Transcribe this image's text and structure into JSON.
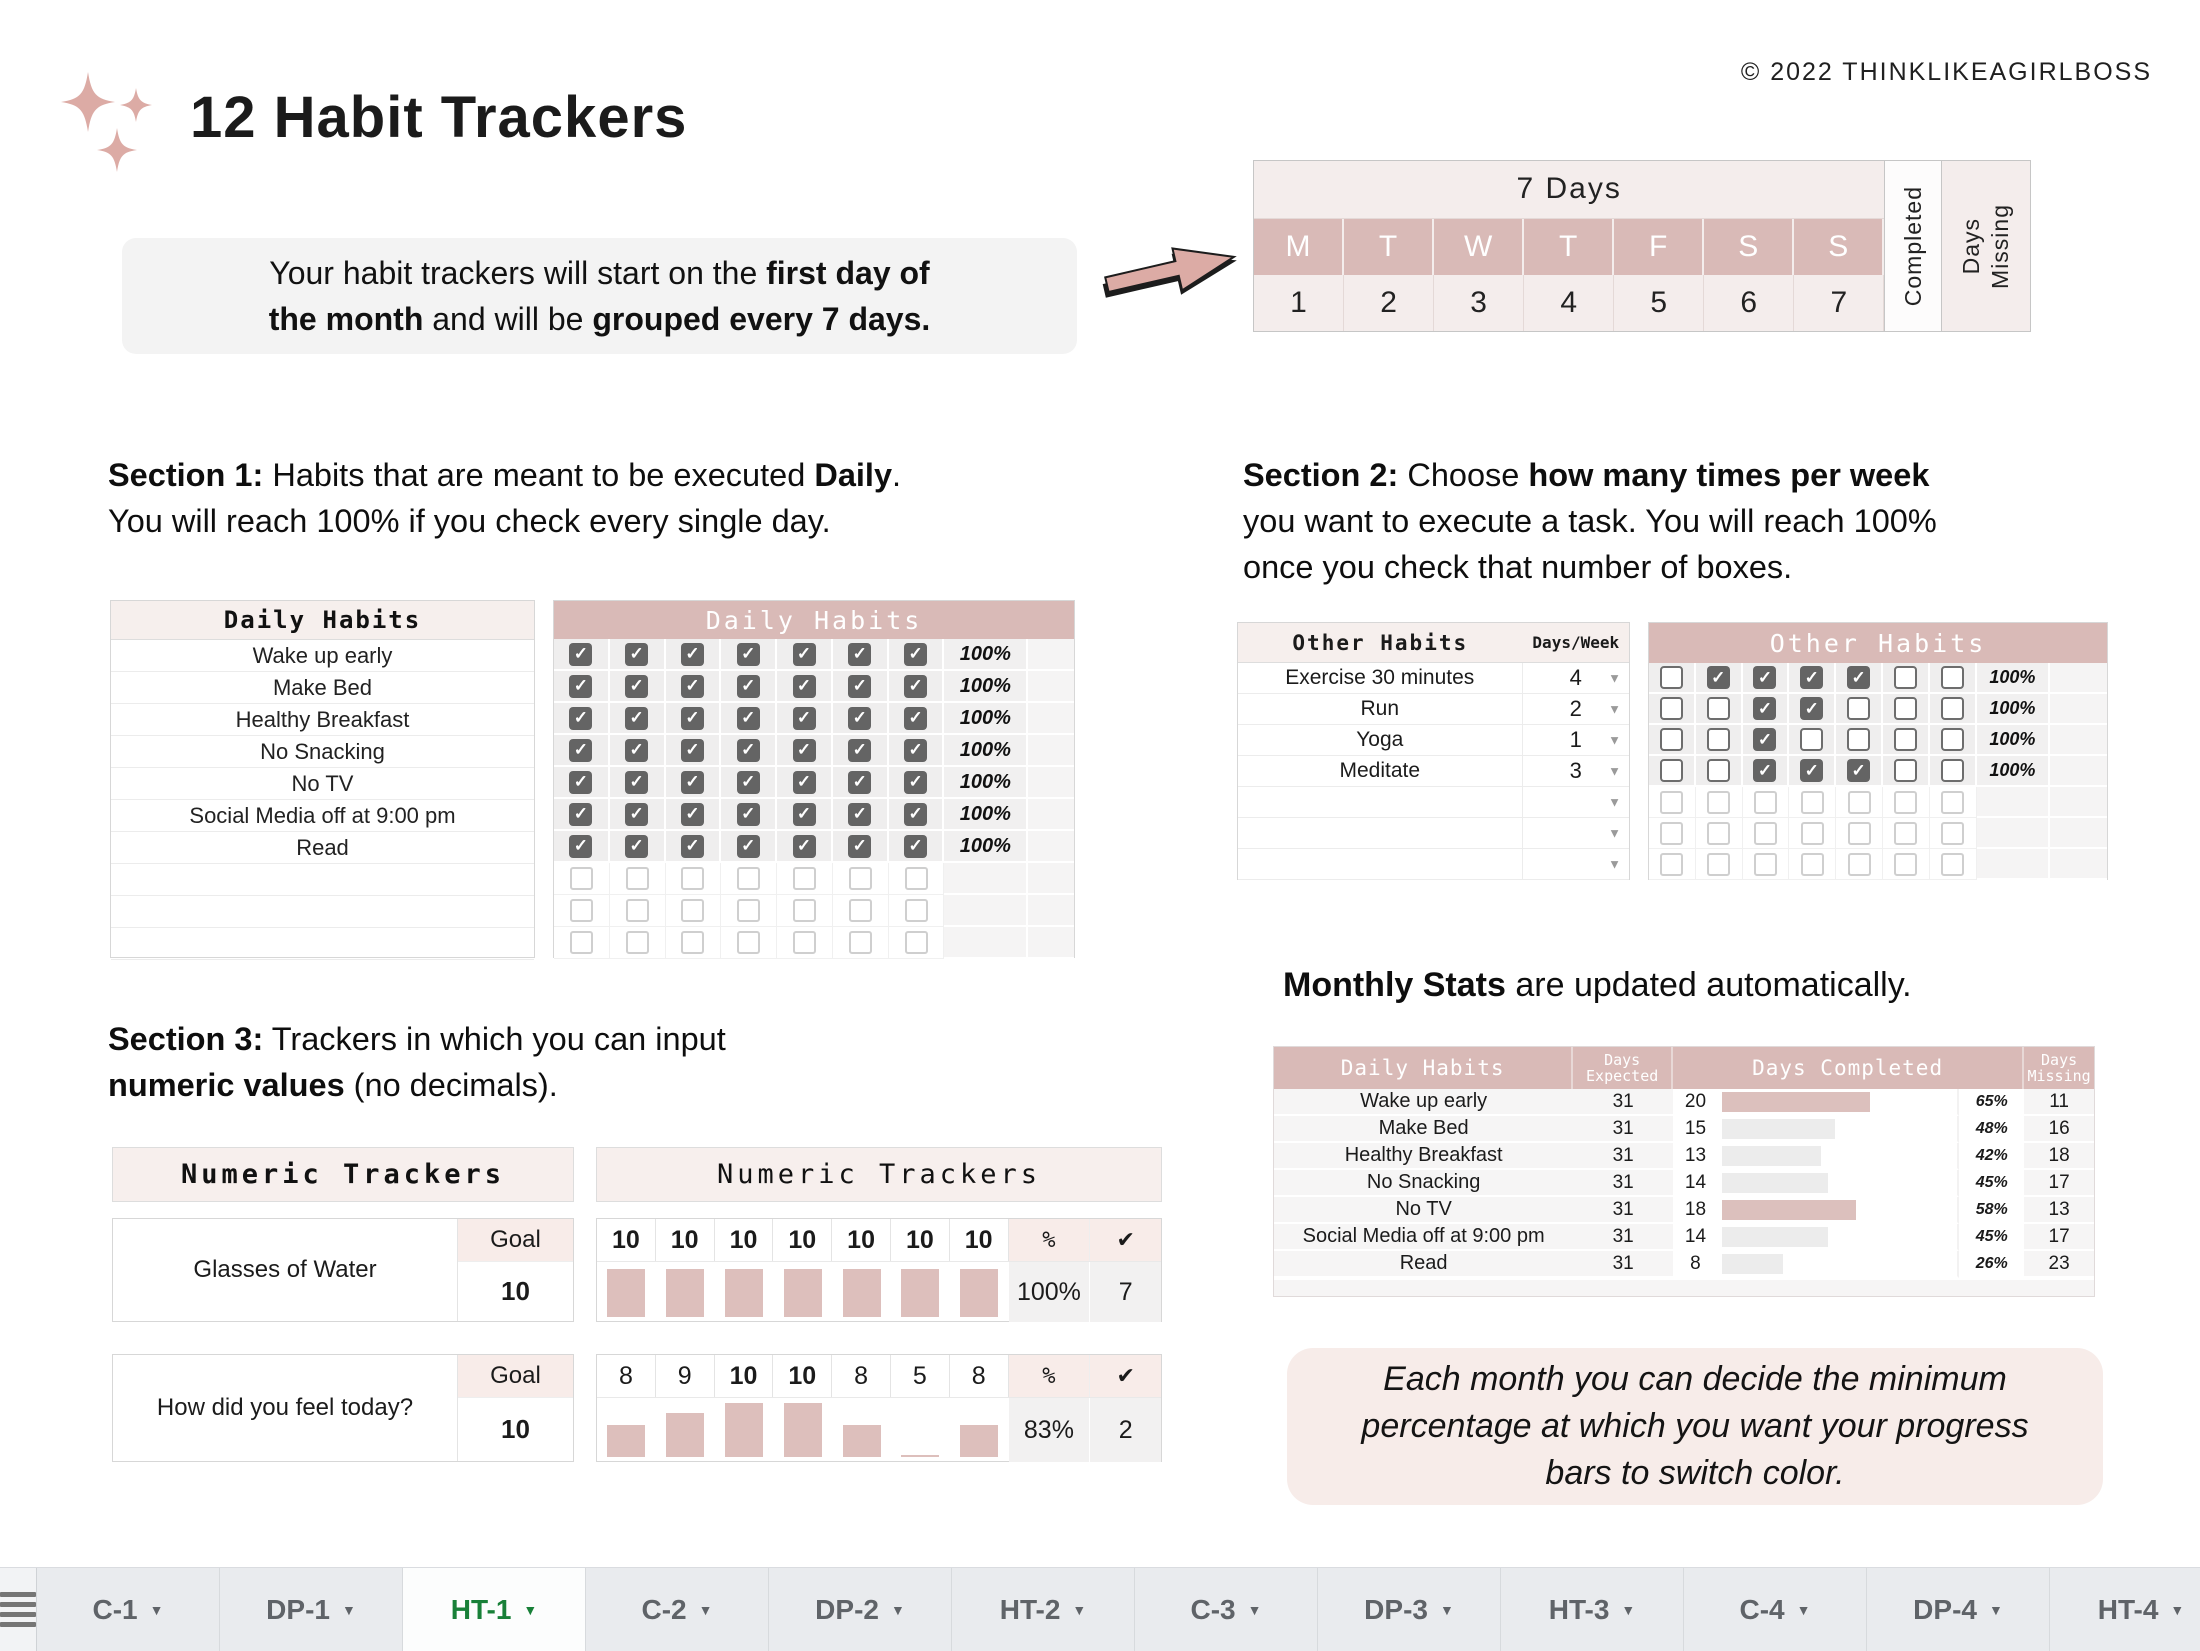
{
  "header": {
    "title": "12 Habit Trackers",
    "copyright": "© 2022 THINKLIKEAGIRLBOSS"
  },
  "intro": {
    "line1_regular": "Your habit trackers will start on the ",
    "line1_bold": "first day of",
    "line2_bold1": "the month",
    "line2_regular": " and will be ",
    "line2_bold2": "grouped every 7 days."
  },
  "week_table": {
    "title": "7 Days",
    "day_letters": [
      "M",
      "T",
      "W",
      "T",
      "F",
      "S",
      "S"
    ],
    "day_numbers": [
      "1",
      "2",
      "3",
      "4",
      "5",
      "6",
      "7"
    ],
    "completed_label": "Completed",
    "missing_word1": "Days",
    "missing_word2": "Missing"
  },
  "section1": {
    "label": "Section 1:",
    "line1_rest": " Habits that are meant to be executed ",
    "line1_bold": "Daily",
    "line1_end": ".",
    "line2": "You will reach 100% if you check every single day."
  },
  "section2": {
    "label": "Section  2:",
    "line1_rest": " Choose ",
    "line1_bold": "how many times per week",
    "line2": "you want to execute a task. You will reach 100%",
    "line3": "once you check that number of boxes."
  },
  "section3": {
    "label": "Section  3:",
    "line1_rest": " Trackers in which you can input",
    "line2_bold": "numeric values",
    "line2_rest": " (no decimals)."
  },
  "daily": {
    "list_title": "Daily Habits",
    "habits": [
      "Wake up early",
      "Make Bed",
      "Healthy Breakfast",
      "No Snacking",
      "No TV",
      "Social Media off at 9:00 pm",
      "Read"
    ],
    "empty_rows": 3,
    "grid_title": "Daily Habits",
    "cols": 7,
    "row_percent": "100%"
  },
  "other": {
    "list_title": "Other Habits",
    "days_week_label": "Days/Week",
    "rows": [
      {
        "name": "Exercise 30 minutes",
        "days": "4"
      },
      {
        "name": "Run",
        "days": "2"
      },
      {
        "name": "Yoga",
        "days": "1"
      },
      {
        "name": "Meditate",
        "days": "3"
      }
    ],
    "empty_rows": 3,
    "grid_title": "Other Habits",
    "checks": [
      [
        0,
        1,
        1,
        1,
        1,
        0,
        0
      ],
      [
        0,
        0,
        1,
        1,
        0,
        0,
        0
      ],
      [
        0,
        0,
        1,
        0,
        0,
        0,
        0
      ],
      [
        0,
        0,
        1,
        1,
        1,
        0,
        0
      ]
    ],
    "row_percent": "100%"
  },
  "monthly": {
    "heading_bold": "Monthly Stats",
    "heading_rest": " are updated automatically.",
    "headers": {
      "habit": "Daily Habits",
      "expected": "Days Expected",
      "completed": "Days Completed",
      "missing": "Days Missing"
    },
    "rows": [
      {
        "name": "Wake up early",
        "expected": "31",
        "completed": "20",
        "pct": "65%",
        "bar": 63,
        "color": "pink",
        "missing": "11"
      },
      {
        "name": "Make Bed",
        "expected": "31",
        "completed": "15",
        "pct": "48%",
        "bar": 48,
        "color": "gray",
        "missing": "16"
      },
      {
        "name": "Healthy Breakfast",
        "expected": "31",
        "completed": "13",
        "pct": "42%",
        "bar": 42,
        "color": "gray",
        "missing": "18"
      },
      {
        "name": "No Snacking",
        "expected": "31",
        "completed": "14",
        "pct": "45%",
        "bar": 45,
        "color": "gray",
        "missing": "17"
      },
      {
        "name": "No TV",
        "expected": "31",
        "completed": "18",
        "pct": "58%",
        "bar": 57,
        "color": "pink",
        "missing": "13"
      },
      {
        "name": "Social Media off at 9:00 pm",
        "expected": "31",
        "completed": "14",
        "pct": "45%",
        "bar": 45,
        "color": "gray",
        "missing": "17"
      },
      {
        "name": "Read",
        "expected": "31",
        "completed": "8",
        "pct": "26%",
        "bar": 26,
        "color": "gray",
        "missing": "23"
      }
    ]
  },
  "numeric": {
    "left_title": "Numeric Trackers",
    "goal_label": "Goal",
    "trackers": [
      {
        "name": "Glasses of Water",
        "goal": "10"
      },
      {
        "name": "How did you feel today?",
        "goal": "10"
      }
    ],
    "right_title": "Numeric Trackers",
    "pct_label": "%",
    "check_label": "✔",
    "blocks": [
      {
        "values": [
          "10",
          "10",
          "10",
          "10",
          "10",
          "10",
          "10"
        ],
        "bold": [
          true,
          true,
          true,
          true,
          true,
          true,
          true
        ],
        "bars": [
          93,
          93,
          93,
          93,
          93,
          93,
          93
        ],
        "pct": "100%",
        "count": "7"
      },
      {
        "values": [
          "8",
          "9",
          "10",
          "10",
          "8",
          "5",
          "8"
        ],
        "bold": [
          false,
          false,
          true,
          true,
          false,
          false,
          false
        ],
        "bars": [
          58,
          78,
          97,
          97,
          58,
          4,
          58
        ],
        "pct": "83%",
        "count": "2"
      }
    ]
  },
  "note": {
    "line1": "Each month you can decide the minimum",
    "line2": "percentage at which you want your progress",
    "line3": "bars to switch color."
  },
  "tabs": {
    "items": [
      {
        "label": "C-1"
      },
      {
        "label": "DP-1"
      },
      {
        "label": "HT-1",
        "active": true
      },
      {
        "label": "C-2"
      },
      {
        "label": "DP-2"
      },
      {
        "label": "HT-2"
      },
      {
        "label": "C-3"
      },
      {
        "label": "DP-3"
      },
      {
        "label": "HT-3"
      },
      {
        "label": "C-4"
      },
      {
        "label": "DP-4"
      },
      {
        "label": "HT-4"
      }
    ]
  },
  "icons": {
    "check": "✓",
    "dropdown": "▼",
    "sparkles": "sparkles",
    "sheets_menu": "hamburger",
    "arrow_right": "arrow-right"
  },
  "colors": {
    "accent_pink": "#d9bab7",
    "light_pink": "#f7ece9",
    "bar_pink": "#dcc0bd",
    "bar_gray": "#ececec",
    "checkbox_dark": "#646464",
    "tab_active_green": "#188038"
  }
}
